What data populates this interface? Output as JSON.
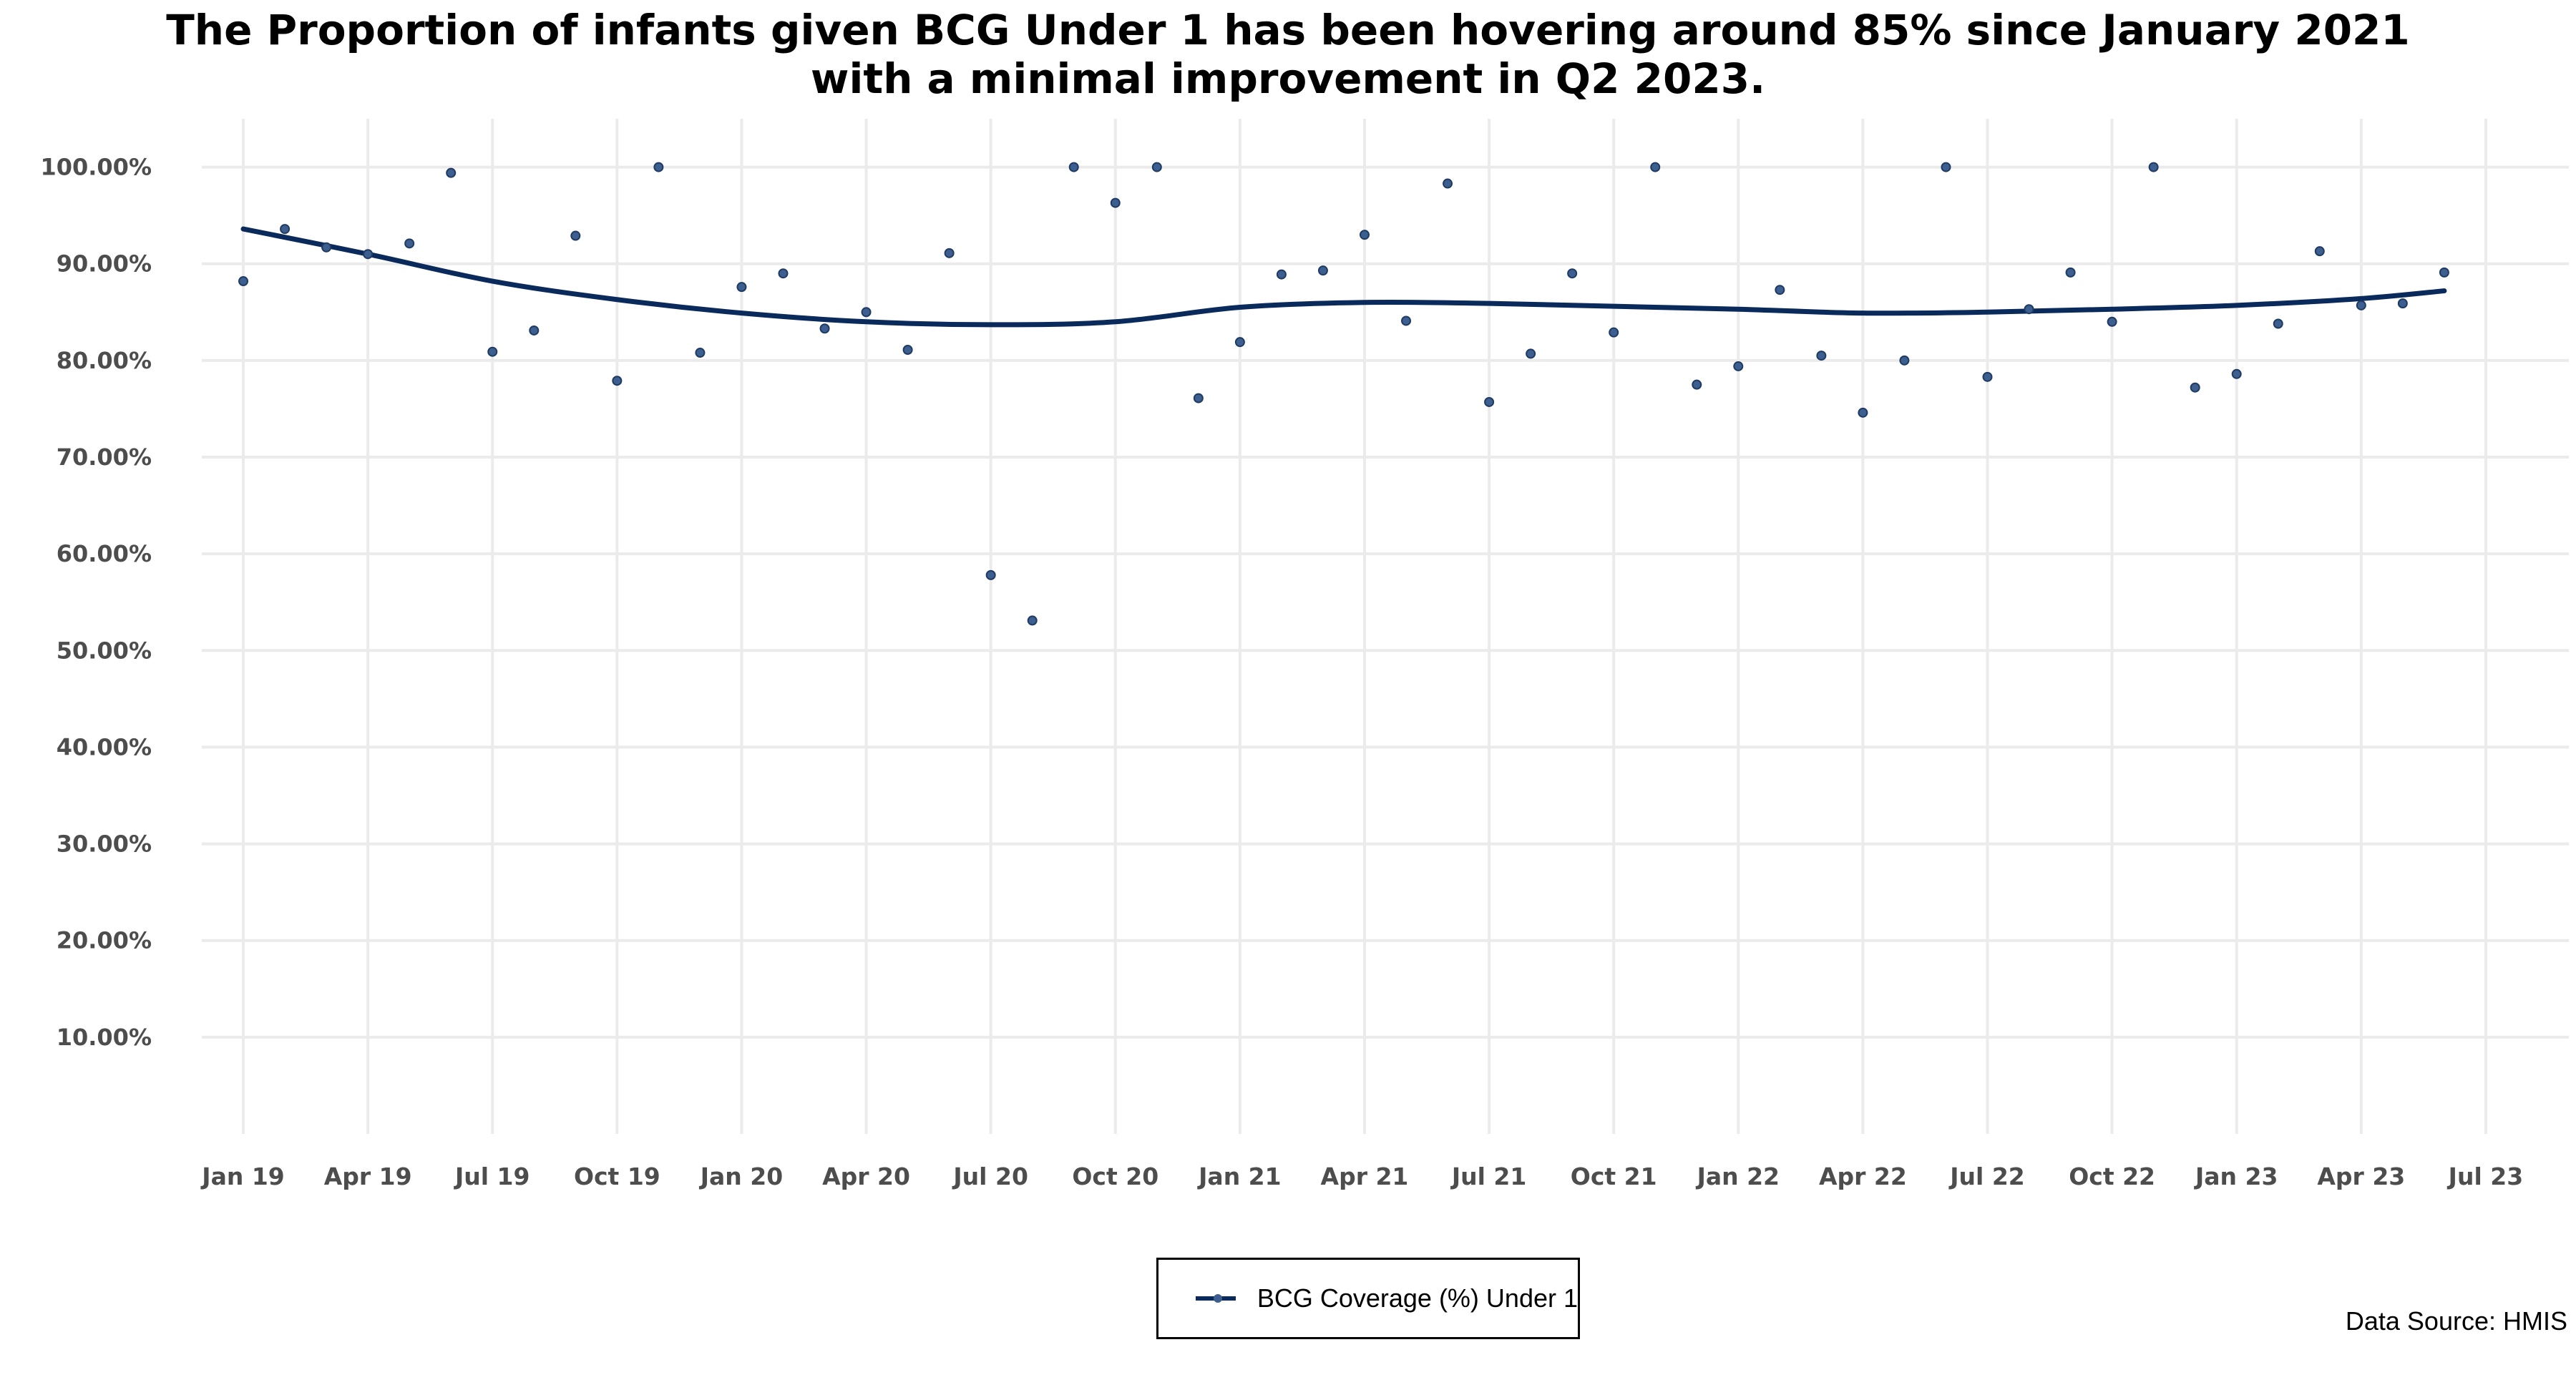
{
  "chart_data": {
    "type": "scatter",
    "title_lines": [
      "The Proportion of infants given BCG Under 1 has been hovering around 85% since January 2021",
      "with a minimal improvement in Q2 2023."
    ],
    "xlabel": "",
    "ylabel": "",
    "ylim": [
      0,
      105
    ],
    "yticks": [
      10,
      20,
      30,
      40,
      50,
      60,
      70,
      80,
      90,
      100
    ],
    "ytick_labels": [
      "10.00%",
      "20.00%",
      "30.00%",
      "40.00%",
      "50.00%",
      "60.00%",
      "70.00%",
      "80.00%",
      "90.00%",
      "100.00%"
    ],
    "xlim": [
      "2018-12",
      "2023-09"
    ],
    "xticks": [
      "2019-01",
      "2019-04",
      "2019-07",
      "2019-10",
      "2020-01",
      "2020-04",
      "2020-07",
      "2020-10",
      "2021-01",
      "2021-04",
      "2021-07",
      "2021-10",
      "2022-01",
      "2022-04",
      "2022-07",
      "2022-10",
      "2023-01",
      "2023-04",
      "2023-07"
    ],
    "xtick_labels": [
      "Jan 19",
      "Apr 19",
      "Jul 19",
      "Oct 19",
      "Jan 20",
      "Apr 20",
      "Jul 20",
      "Oct 20",
      "Jan 21",
      "Apr 21",
      "Jul 21",
      "Oct 21",
      "Jan 22",
      "Apr 22",
      "Jul 22",
      "Oct 22",
      "Jan 23",
      "Apr 23",
      "Jul 23"
    ],
    "grid": true,
    "legend_position": "bottom",
    "series": [
      {
        "name": "BCG Coverage (%) Under 1",
        "color": "#0a2a5c",
        "x": [
          "2019-01",
          "2019-02",
          "2019-03",
          "2019-04",
          "2019-05",
          "2019-06",
          "2019-07",
          "2019-08",
          "2019-09",
          "2019-10",
          "2019-11",
          "2019-12",
          "2020-01",
          "2020-02",
          "2020-03",
          "2020-04",
          "2020-05",
          "2020-06",
          "2020-07",
          "2020-08",
          "2020-09",
          "2020-10",
          "2020-11",
          "2020-12",
          "2021-01",
          "2021-02",
          "2021-03",
          "2021-04",
          "2021-05",
          "2021-06",
          "2021-07",
          "2021-08",
          "2021-09",
          "2021-10",
          "2021-11",
          "2021-12",
          "2022-01",
          "2022-02",
          "2022-03",
          "2022-04",
          "2022-05",
          "2022-06",
          "2022-07",
          "2022-08",
          "2022-09",
          "2022-10",
          "2022-11",
          "2022-12",
          "2023-01",
          "2023-02",
          "2023-03",
          "2023-04",
          "2023-05",
          "2023-06"
        ],
        "values": [
          88.2,
          93.6,
          91.7,
          91.0,
          92.1,
          99.4,
          80.9,
          83.1,
          92.9,
          77.9,
          100.0,
          80.8,
          87.6,
          89.0,
          83.3,
          85.0,
          81.1,
          91.1,
          57.8,
          53.1,
          100.0,
          96.3,
          100.0,
          76.1,
          81.9,
          88.9,
          89.3,
          93.0,
          84.1,
          98.3,
          75.7,
          80.7,
          89.0,
          82.9,
          100.0,
          77.5,
          79.4,
          87.3,
          80.5,
          74.6,
          80.0,
          100.0,
          78.3,
          85.3,
          89.1,
          84.0,
          100.0,
          77.2,
          78.6,
          83.8,
          91.3,
          85.7,
          85.9,
          89.1
        ]
      }
    ],
    "trend": {
      "x": [
        "2019-01",
        "2019-04",
        "2019-07",
        "2019-10",
        "2020-01",
        "2020-04",
        "2020-07",
        "2020-10",
        "2021-01",
        "2021-04",
        "2021-07",
        "2021-10",
        "2022-01",
        "2022-04",
        "2022-07",
        "2022-10",
        "2023-01",
        "2023-04",
        "2023-06"
      ],
      "values": [
        93.6,
        91.0,
        88.2,
        86.3,
        84.9,
        84.0,
        83.7,
        84.0,
        85.5,
        86.0,
        85.9,
        85.6,
        85.3,
        84.9,
        85.0,
        85.3,
        85.7,
        86.4,
        87.2
      ]
    }
  },
  "legend": {
    "label": "BCG Coverage (%) Under 1"
  },
  "source": "Data Source: HMIS"
}
